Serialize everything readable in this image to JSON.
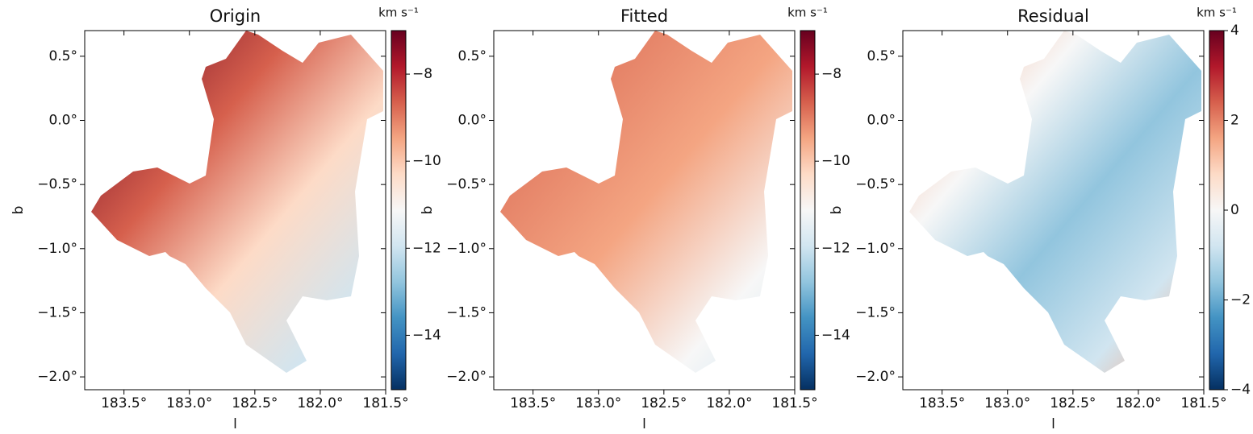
{
  "chart_data": [
    {
      "type": "heatmap",
      "title": "Origin",
      "xlabel": "l",
      "ylabel": "b",
      "xlim": [
        183.8,
        181.5
      ],
      "xticks": [
        {
          "value": 183.5,
          "label": "183.5°"
        },
        {
          "value": 183.0,
          "label": "183.0°"
        },
        {
          "value": 182.5,
          "label": "182.5°"
        },
        {
          "value": 182.0,
          "label": "182.0°"
        },
        {
          "value": 181.5,
          "label": "181.5°"
        }
      ],
      "ylim": [
        -2.1,
        0.7
      ],
      "yticks": [
        {
          "value": 0.5,
          "label": "0.5°"
        },
        {
          "value": 0.0,
          "label": "0.0°"
        },
        {
          "value": -0.5,
          "label": "−0.5°"
        },
        {
          "value": -1.0,
          "label": "−1.0°"
        },
        {
          "value": -1.5,
          "label": "−1.5°"
        },
        {
          "value": -2.0,
          "label": "−2.0°"
        }
      ],
      "colorbar": {
        "label": "km s⁻¹",
        "lim": [
          -15.25,
          -7.0
        ],
        "ticks": [
          {
            "value": -8,
            "label": "−8"
          },
          {
            "value": -10,
            "label": "−10"
          },
          {
            "value": -12,
            "label": "−12"
          },
          {
            "value": -14,
            "label": "−14"
          }
        ]
      },
      "colormap": [
        "#053061",
        "#2166ac",
        "#4393c3",
        "#92c5de",
        "#d1e5f0",
        "#f7f7f7",
        "#fddbc7",
        "#f4a582",
        "#d6604d",
        "#b2182b",
        "#67001f"
      ]
    },
    {
      "type": "heatmap",
      "title": "Fitted",
      "xlabel": "l",
      "ylabel": "b",
      "xlim": [
        183.8,
        181.5
      ],
      "xticks": [
        {
          "value": 183.5,
          "label": "183.5°"
        },
        {
          "value": 183.0,
          "label": "183.0°"
        },
        {
          "value": 182.5,
          "label": "182.5°"
        },
        {
          "value": 182.0,
          "label": "182.0°"
        },
        {
          "value": 181.5,
          "label": "181.5°"
        }
      ],
      "ylim": [
        -2.1,
        0.7
      ],
      "yticks": [
        {
          "value": 0.5,
          "label": "0.5°"
        },
        {
          "value": 0.0,
          "label": "0.0°"
        },
        {
          "value": -0.5,
          "label": "−0.5°"
        },
        {
          "value": -1.0,
          "label": "−1.0°"
        },
        {
          "value": -1.5,
          "label": "−1.5°"
        },
        {
          "value": -2.0,
          "label": "−2.0°"
        }
      ],
      "colorbar": {
        "label": "km s⁻¹",
        "lim": [
          -15.25,
          -7.0
        ],
        "ticks": [
          {
            "value": -8,
            "label": "−8"
          },
          {
            "value": -10,
            "label": "−10"
          },
          {
            "value": -12,
            "label": "−12"
          },
          {
            "value": -14,
            "label": "−14"
          }
        ]
      },
      "colormap": [
        "#053061",
        "#2166ac",
        "#4393c3",
        "#92c5de",
        "#d1e5f0",
        "#f7f7f7",
        "#fddbc7",
        "#f4a582",
        "#d6604d",
        "#b2182b",
        "#67001f"
      ]
    },
    {
      "type": "heatmap",
      "title": "Residual",
      "xlabel": "l",
      "ylabel": "b",
      "xlim": [
        183.8,
        181.5
      ],
      "xticks": [
        {
          "value": 183.5,
          "label": "183.5°"
        },
        {
          "value": 183.0,
          "label": "183.0°"
        },
        {
          "value": 182.5,
          "label": "182.5°"
        },
        {
          "value": 182.0,
          "label": "182.0°"
        },
        {
          "value": 181.5,
          "label": "181.5°"
        }
      ],
      "ylim": [
        -2.1,
        0.7
      ],
      "yticks": [
        {
          "value": 0.5,
          "label": "0.5°"
        },
        {
          "value": 0.0,
          "label": "0.0°"
        },
        {
          "value": -0.5,
          "label": "−0.5°"
        },
        {
          "value": -1.0,
          "label": "−1.0°"
        },
        {
          "value": -1.5,
          "label": "−1.5°"
        },
        {
          "value": -2.0,
          "label": "−2.0°"
        }
      ],
      "colorbar": {
        "label": "km s⁻¹",
        "lim": [
          -4,
          4
        ],
        "ticks": [
          4,
          2,
          0,
          {
            "value": -2,
            "label": "−2"
          },
          {
            "value": -4,
            "label": "−4"
          }
        ]
      },
      "colormap": [
        "#053061",
        "#2166ac",
        "#4393c3",
        "#92c5de",
        "#d1e5f0",
        "#f7f7f7",
        "#fddbc7",
        "#f4a582",
        "#d6604d",
        "#b2182b",
        "#67001f"
      ]
    }
  ]
}
